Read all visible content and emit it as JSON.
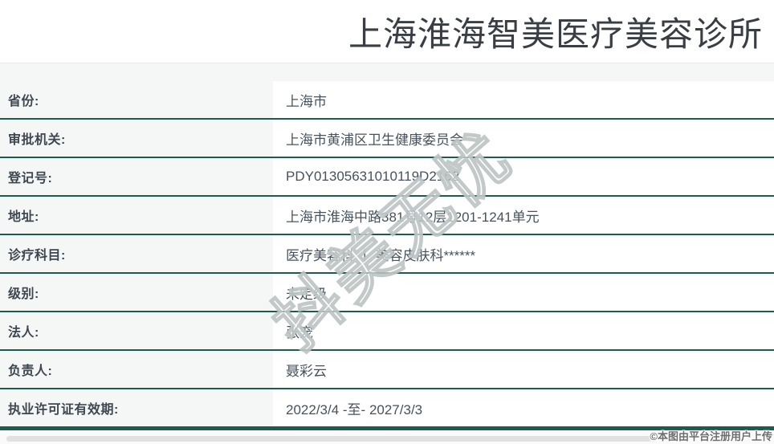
{
  "header": {
    "title": "上海淮海智美医疗美容诊所"
  },
  "table": {
    "rows": [
      {
        "label": "省份:",
        "value": "上海市"
      },
      {
        "label": "审批机关:",
        "value": "上海市黄浦区卫生健康委员会"
      },
      {
        "label": "登记号:",
        "value": "PDY01305631010119D2162"
      },
      {
        "label": "地址:",
        "value": "上海市淮海中路381号12层1201-1241单元"
      },
      {
        "label": "诊疗科目:",
        "value": "医疗美容科 丨 美容皮肤科******"
      },
      {
        "label": "级别:",
        "value": "未定级"
      },
      {
        "label": "法人:",
        "value": "张宠"
      },
      {
        "label": "负责人:",
        "value": "聂彩云"
      },
      {
        "label": "执业许可证有效期:",
        "value": "2022/3/4 -至- 2027/3/3"
      }
    ]
  },
  "watermarks": {
    "diagonal": "抖美无忧",
    "footer": "©本图由平台注册用户上传"
  },
  "colors": {
    "accent_teal": "#1c5b4e",
    "label_column_bg": "#f5f6f6",
    "title_color": "#393e44",
    "label_text": "#3e4751",
    "value_text": "#47525e",
    "scrollbar_thumb": "#e1e1e1",
    "watermark_outline": "#b9bfbf"
  }
}
